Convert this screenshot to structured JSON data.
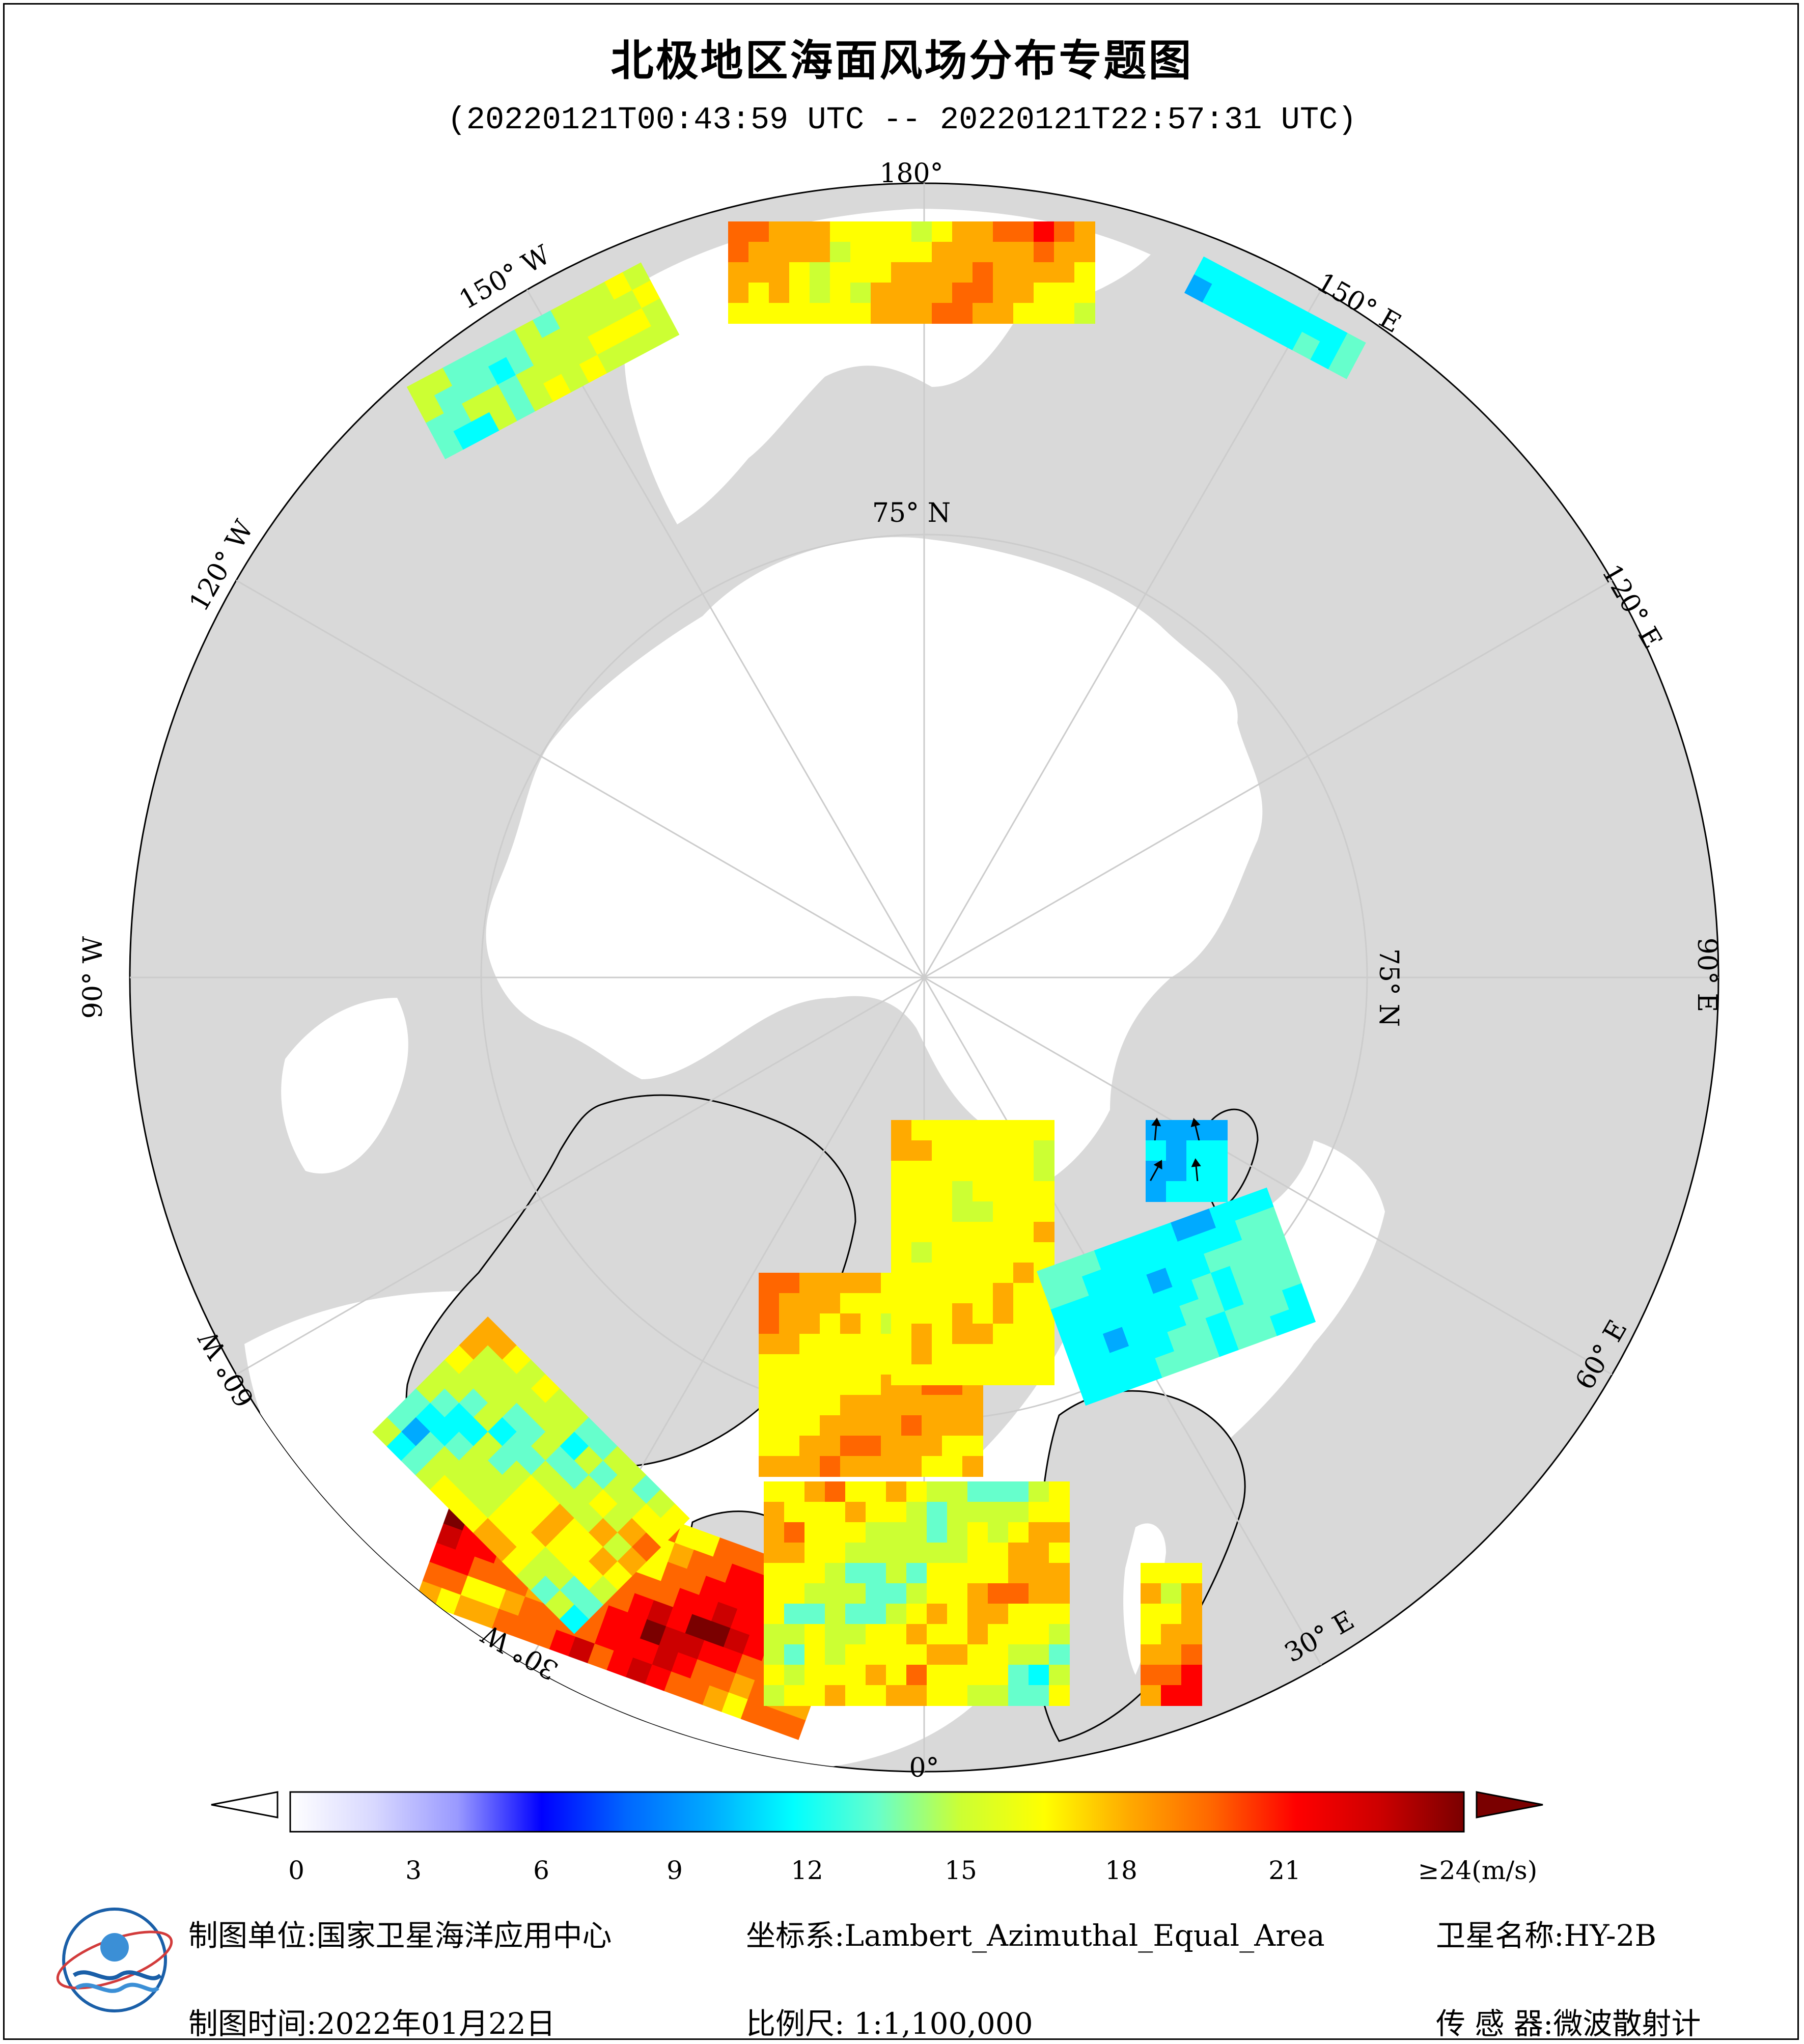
{
  "title": "北极地区海面风场分布专题图",
  "subtitle": "(20220121T00:43:59 UTC -- 20220121T22:57:31 UTC)",
  "graticule": {
    "lon_labels": [
      "180°",
      "150° E",
      "120° E",
      "90° E",
      "60° E",
      "30° E",
      "0°",
      "30° W",
      "60° W",
      "90° W",
      "120° W",
      "150° W"
    ],
    "lat_label": "75° N"
  },
  "colorbar": {
    "min": 0,
    "max": 24,
    "ticks": [
      "0",
      "3",
      "6",
      "9",
      "12",
      "15",
      "18",
      "21",
      "≥24(m/s)"
    ],
    "colors": [
      "#ffffff",
      "#d8d8ff",
      "#9999ff",
      "#0000ff",
      "#0066ff",
      "#00aaff",
      "#00ffff",
      "#66ffcc",
      "#ccff33",
      "#ffff00",
      "#ffaa00",
      "#ff6600",
      "#ff0000",
      "#cc0000",
      "#7a0000"
    ],
    "unit": "m/s"
  },
  "footer": {
    "unit_label": "制图单位:国家卫星海洋应用中心",
    "time_label": "制图时间:2022年01月22日",
    "crs_label": "坐标系:Lambert_Azimuthal_Equal_Area",
    "scale_label": "比例尺: 1:1,100,000",
    "satellite_label": "卫星名称:HY-2B",
    "sensor_label": "传 感 器:微波散射计"
  },
  "colors": {
    "land": "#d9d9d9",
    "ocean": "#ffffff",
    "graticule": "#cccccc",
    "wind_arrow": "#000000"
  }
}
